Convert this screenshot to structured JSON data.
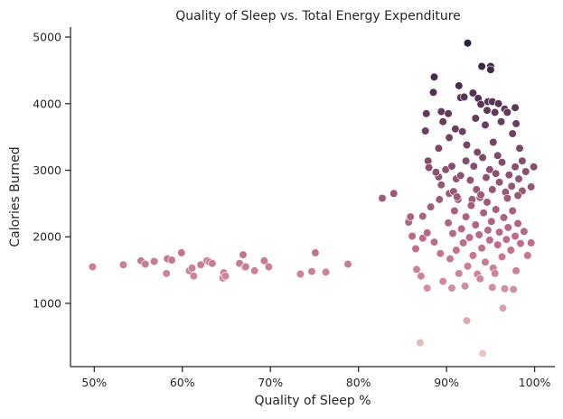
{
  "chart_data": {
    "type": "scatter",
    "title": "Quality of Sleep vs. Total Energy Expenditure",
    "xlabel": "Quality of Sleep %",
    "ylabel": "Calories Burned",
    "xlim": [
      47.3,
      102.3
    ],
    "ylim": [
      50,
      5150
    ],
    "xticks": [
      {
        "value": 50,
        "label": "50%"
      },
      {
        "value": 60,
        "label": "60%"
      },
      {
        "value": 70,
        "label": "70%"
      },
      {
        "value": 80,
        "label": "80%"
      },
      {
        "value": 90,
        "label": "90%"
      },
      {
        "value": 100,
        "label": "100%"
      }
    ],
    "yticks": [
      {
        "value": 1000,
        "label": "1000"
      },
      {
        "value": 2000,
        "label": "2000"
      },
      {
        "value": 3000,
        "label": "3000"
      },
      {
        "value": 4000,
        "label": "4000"
      },
      {
        "value": 5000,
        "label": "5000"
      }
    ],
    "grid": false,
    "legend": "none",
    "hue": "calories",
    "colors": {
      "low": "#e8c4c4",
      "mid": "#c06d8c",
      "high": "#2d1e3e"
    },
    "points": [
      [
        49.8,
        1550
      ],
      [
        53.3,
        1580
      ],
      [
        55.3,
        1640
      ],
      [
        55.8,
        1590
      ],
      [
        56.8,
        1630
      ],
      [
        58.2,
        1450
      ],
      [
        58.3,
        1670
      ],
      [
        58.8,
        1650
      ],
      [
        59.9,
        1760
      ],
      [
        60.8,
        1490
      ],
      [
        61.1,
        1530
      ],
      [
        61.3,
        1410
      ],
      [
        62.1,
        1580
      ],
      [
        62.8,
        1640
      ],
      [
        63.1,
        1620
      ],
      [
        63.4,
        1600
      ],
      [
        64.6,
        1380
      ],
      [
        64.7,
        1460
      ],
      [
        64.9,
        1410
      ],
      [
        66.5,
        1600
      ],
      [
        66.9,
        1730
      ],
      [
        67.1,
        1540
      ],
      [
        67.2,
        1550
      ],
      [
        68.2,
        1490
      ],
      [
        69.3,
        1640
      ],
      [
        69.8,
        1550
      ],
      [
        73.4,
        1440
      ],
      [
        74.7,
        1480
      ],
      [
        75.1,
        1760
      ],
      [
        76.3,
        1470
      ],
      [
        78.8,
        1590
      ],
      [
        82.7,
        2580
      ],
      [
        84.0,
        2650
      ],
      [
        85.7,
        2220
      ],
      [
        85.9,
        2300
      ],
      [
        86.1,
        2010
      ],
      [
        86.6,
        1510
      ],
      [
        87.1,
        1410
      ],
      [
        87.3,
        1980
      ],
      [
        87.3,
        2310
      ],
      [
        87.8,
        1230
      ],
      [
        87.0,
        410
      ],
      [
        87.6,
        3590
      ],
      [
        87.7,
        3850
      ],
      [
        87.9,
        3140
      ],
      [
        88.0,
        3040
      ],
      [
        88.6,
        4400
      ],
      [
        88.5,
        4170
      ],
      [
        89.1,
        3330
      ],
      [
        89.1,
        2900
      ],
      [
        89.4,
        3880
      ],
      [
        89.6,
        3730
      ],
      [
        90.2,
        3850
      ],
      [
        90.3,
        3490
      ],
      [
        91.0,
        3620
      ],
      [
        91.1,
        2870
      ],
      [
        91.4,
        4270
      ],
      [
        91.6,
        4090
      ],
      [
        91.8,
        3580
      ],
      [
        92.0,
        4100
      ],
      [
        92.3,
        3380
      ],
      [
        92.4,
        4910
      ],
      [
        93.0,
        4160
      ],
      [
        93.3,
        3780
      ],
      [
        93.6,
        4080
      ],
      [
        93.9,
        3990
      ],
      [
        94.0,
        4560
      ],
      [
        94.4,
        3680
      ],
      [
        94.6,
        3900
      ],
      [
        94.7,
        4030
      ],
      [
        95.0,
        4560
      ],
      [
        95.0,
        4510
      ],
      [
        95.2,
        4030
      ],
      [
        95.3,
        3420
      ],
      [
        95.5,
        3870
      ],
      [
        95.9,
        4000
      ],
      [
        96.2,
        3730
      ],
      [
        96.6,
        3920
      ],
      [
        96.9,
        3870
      ],
      [
        97.5,
        3550
      ],
      [
        97.8,
        3940
      ],
      [
        97.9,
        3700
      ],
      [
        98.3,
        3330
      ],
      [
        99.9,
        3050
      ],
      [
        98.6,
        3140
      ],
      [
        88.8,
        2970
      ],
      [
        89.4,
        2780
      ],
      [
        89.9,
        3010
      ],
      [
        90.3,
        2650
      ],
      [
        90.6,
        3060
      ],
      [
        90.8,
        2680
      ],
      [
        91.3,
        2560
      ],
      [
        91.6,
        2920
      ],
      [
        92.2,
        3140
      ],
      [
        92.7,
        2850
      ],
      [
        93.1,
        3060
      ],
      [
        93.4,
        2710
      ],
      [
        93.8,
        2590
      ],
      [
        94.1,
        3190
      ],
      [
        94.5,
        2890
      ],
      [
        94.9,
        3010
      ],
      [
        95.2,
        2710
      ],
      [
        95.6,
        2950
      ],
      [
        96.0,
        2820
      ],
      [
        96.3,
        3120
      ],
      [
        96.7,
        2670
      ],
      [
        97.1,
        2930
      ],
      [
        97.4,
        2760
      ],
      [
        97.8,
        3050
      ],
      [
        98.2,
        2870
      ],
      [
        98.6,
        2690
      ],
      [
        99.0,
        2980
      ],
      [
        99.6,
        2750
      ],
      [
        92.9,
        2560
      ],
      [
        94.6,
        2520
      ],
      [
        96.9,
        2580
      ],
      [
        98.1,
        2620
      ],
      [
        95.8,
        3220
      ],
      [
        93.5,
        3270
      ],
      [
        86.5,
        1820
      ],
      [
        87.8,
        2060
      ],
      [
        88.2,
        2450
      ],
      [
        88.6,
        1920
      ],
      [
        89.2,
        2560
      ],
      [
        89.3,
        1750
      ],
      [
        89.6,
        1330
      ],
      [
        90.2,
        2210
      ],
      [
        90.4,
        1670
      ],
      [
        90.7,
        2050
      ],
      [
        90.9,
        2390
      ],
      [
        91.1,
        1800
      ],
      [
        91.4,
        1450
      ],
      [
        91.7,
        2120
      ],
      [
        91.9,
        1910
      ],
      [
        92.2,
        2300
      ],
      [
        92.4,
        1560
      ],
      [
        92.6,
        1990
      ],
      [
        92.8,
        2470
      ],
      [
        93.0,
        1720
      ],
      [
        93.3,
        2180
      ],
      [
        93.5,
        1440
      ],
      [
        93.7,
        2030
      ],
      [
        94.0,
        1830
      ],
      [
        94.2,
        2360
      ],
      [
        94.4,
        1620
      ],
      [
        94.7,
        2100
      ],
      [
        94.9,
        1950
      ],
      [
        95.1,
        2230
      ],
      [
        95.3,
        1530
      ],
      [
        95.6,
        2410
      ],
      [
        95.8,
        1880
      ],
      [
        96.0,
        2070
      ],
      [
        96.3,
        1700
      ],
      [
        96.5,
        2290
      ],
      [
        96.8,
        1960
      ],
      [
        97.0,
        2140
      ],
      [
        97.3,
        1800
      ],
      [
        97.5,
        2390
      ],
      [
        97.8,
        2010
      ],
      [
        98.1,
        2200
      ],
      [
        98.4,
        1900
      ],
      [
        98.8,
        2080
      ],
      [
        99.2,
        1720
      ],
      [
        99.6,
        1910
      ],
      [
        90.6,
        1230
      ],
      [
        92.1,
        1260
      ],
      [
        93.8,
        1370
      ],
      [
        95.5,
        1450
      ],
      [
        96.6,
        1220
      ],
      [
        97.9,
        1490
      ],
      [
        92.3,
        740
      ],
      [
        96.4,
        930
      ],
      [
        94.1,
        250
      ],
      [
        91.2,
        2600
      ],
      [
        93.9,
        2630
      ],
      [
        95.2,
        1240
      ],
      [
        97.6,
        1210
      ]
    ]
  }
}
